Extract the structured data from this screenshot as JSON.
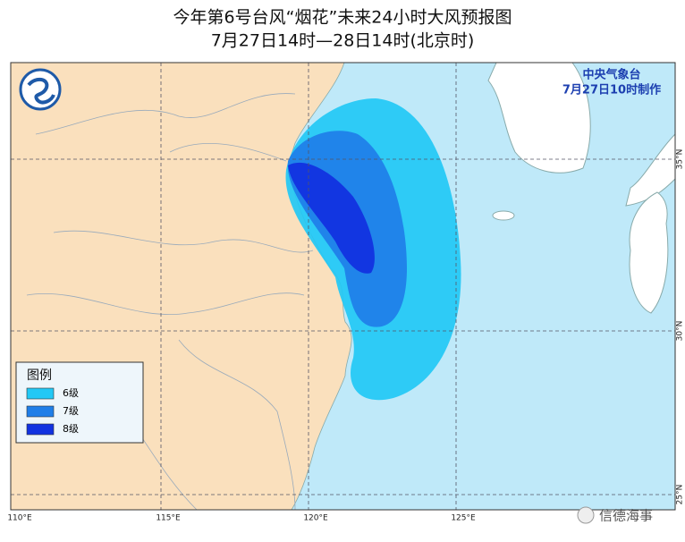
{
  "header": {
    "title": "今年第6号台风“烟花”未来24小时大风预报图",
    "subtitle": "7月27日14时—28日14时(北京时)"
  },
  "issuer": {
    "agency": "中央气象台",
    "issued": "7月27日10时制作"
  },
  "legend": {
    "title": "图例",
    "items": [
      {
        "label": "6级",
        "color": "#22c8f5"
      },
      {
        "label": "7级",
        "color": "#1f7ee8"
      },
      {
        "label": "8级",
        "color": "#1232e0"
      }
    ]
  },
  "axes": {
    "longitudes": [
      "110°E",
      "115°E",
      "120°E",
      "125°E"
    ],
    "latitudes": [
      "35°N",
      "30°N",
      "25°N"
    ]
  },
  "watermark": "信德海事"
}
